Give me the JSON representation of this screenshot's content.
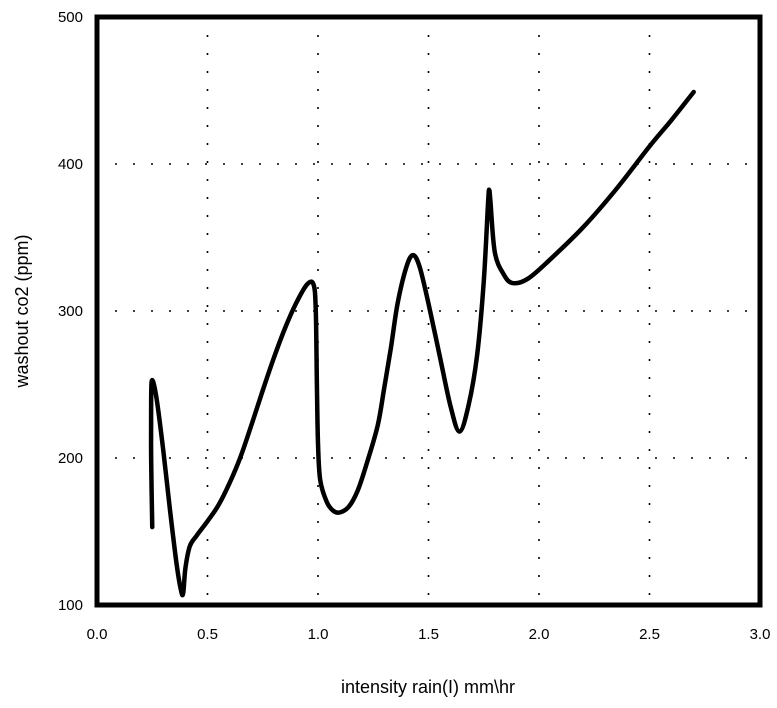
{
  "chart_data": {
    "type": "line",
    "title": "",
    "xlabel": "intensity rain(I) mm\\hr",
    "ylabel": "washout co2 (ppm)",
    "xlim": [
      0.0,
      3.0
    ],
    "ylim": [
      100,
      500
    ],
    "xticks": [
      "0.0",
      "0.5",
      "1.0",
      "1.5",
      "2.0",
      "2.5",
      "3.0"
    ],
    "yticks": [
      "100",
      "200",
      "300",
      "400",
      "500"
    ],
    "grid": "dotted",
    "legend": "none",
    "line_color": "#000000",
    "series": [
      {
        "points": [
          [
            0.25,
            153
          ],
          [
            0.245,
            200
          ],
          [
            0.245,
            240
          ],
          [
            0.25,
            253
          ],
          [
            0.27,
            240
          ],
          [
            0.3,
            205
          ],
          [
            0.33,
            165
          ],
          [
            0.36,
            128
          ],
          [
            0.38,
            110
          ],
          [
            0.39,
            108
          ],
          [
            0.4,
            125
          ],
          [
            0.42,
            140
          ],
          [
            0.45,
            147
          ],
          [
            0.5,
            157
          ],
          [
            0.55,
            168
          ],
          [
            0.6,
            183
          ],
          [
            0.65,
            201
          ],
          [
            0.7,
            223
          ],
          [
            0.75,
            246
          ],
          [
            0.8,
            268
          ],
          [
            0.85,
            288
          ],
          [
            0.9,
            305
          ],
          [
            0.95,
            318
          ],
          [
            0.98,
            318
          ],
          [
            0.99,
            300
          ],
          [
            0.995,
            250
          ],
          [
            1.0,
            210
          ],
          [
            1.01,
            185
          ],
          [
            1.04,
            170
          ],
          [
            1.07,
            164
          ],
          [
            1.1,
            163
          ],
          [
            1.14,
            167
          ],
          [
            1.18,
            178
          ],
          [
            1.22,
            196
          ],
          [
            1.27,
            222
          ],
          [
            1.3,
            248
          ],
          [
            1.33,
            275
          ],
          [
            1.36,
            305
          ],
          [
            1.4,
            330
          ],
          [
            1.43,
            338
          ],
          [
            1.46,
            330
          ],
          [
            1.5,
            305
          ],
          [
            1.55,
            270
          ],
          [
            1.6,
            235
          ],
          [
            1.64,
            218
          ],
          [
            1.68,
            235
          ],
          [
            1.72,
            270
          ],
          [
            1.75,
            320
          ],
          [
            1.77,
            375
          ],
          [
            1.775,
            382
          ],
          [
            1.78,
            375
          ],
          [
            1.8,
            340
          ],
          [
            1.84,
            325
          ],
          [
            1.88,
            319
          ],
          [
            1.95,
            322
          ],
          [
            2.05,
            335
          ],
          [
            2.2,
            357
          ],
          [
            2.35,
            383
          ],
          [
            2.5,
            412
          ],
          [
            2.6,
            430
          ],
          [
            2.7,
            449
          ]
        ]
      }
    ]
  }
}
